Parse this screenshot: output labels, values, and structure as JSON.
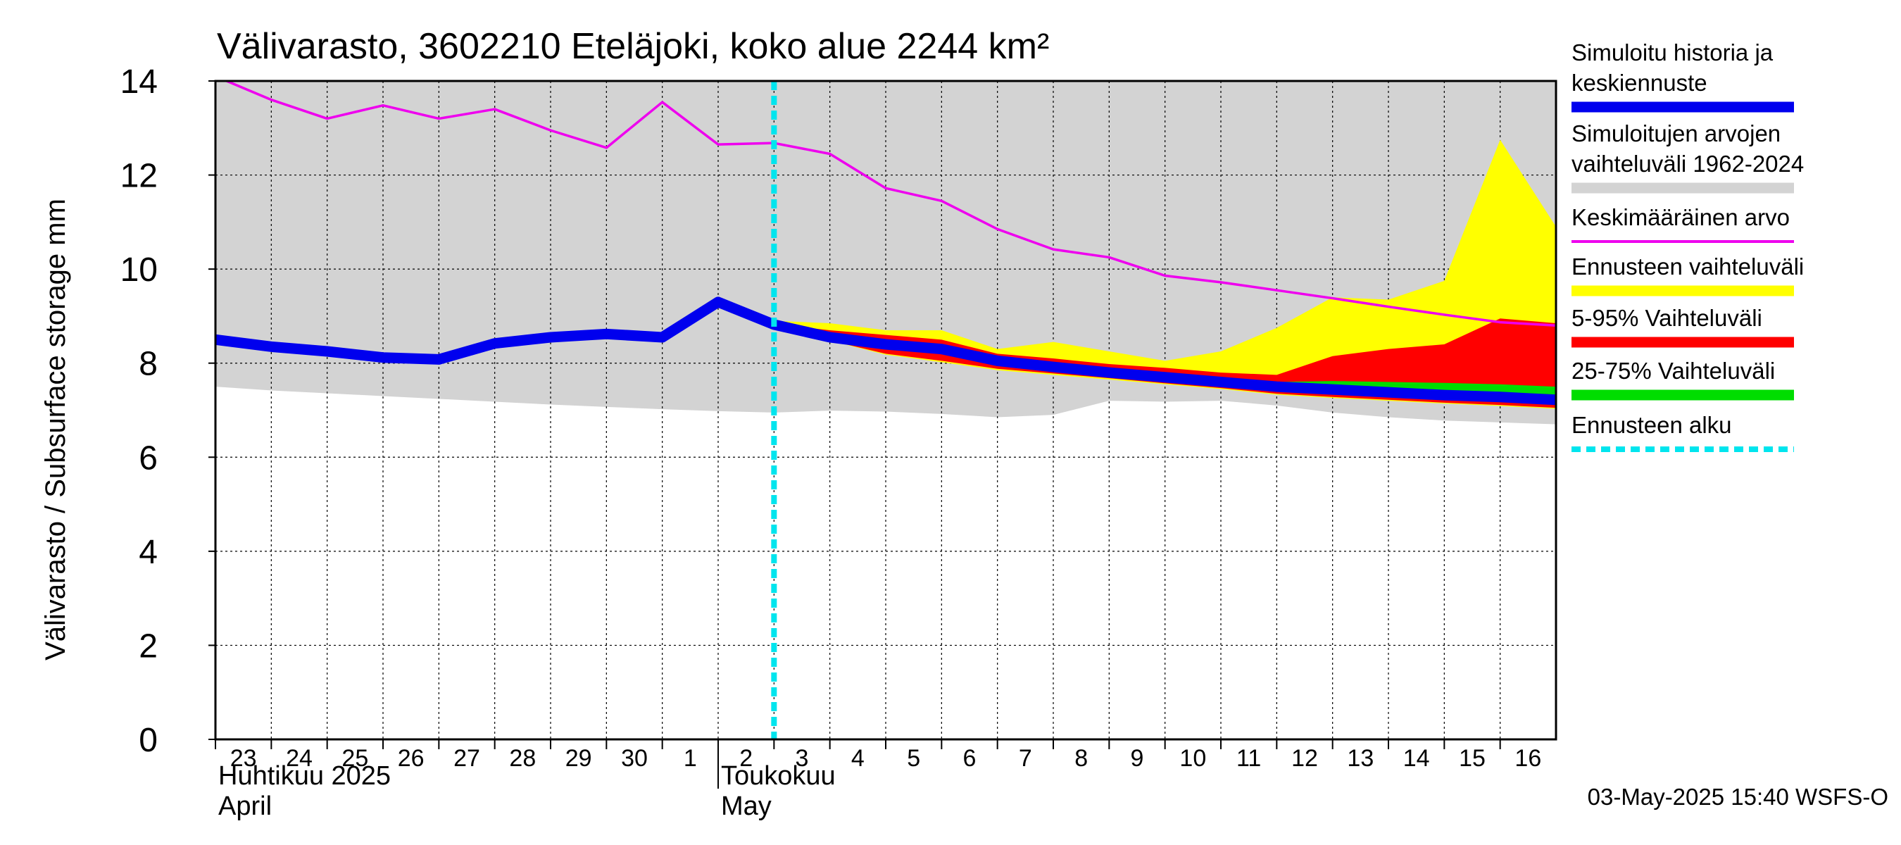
{
  "chart_data": {
    "type": "area",
    "title": "Välivarasto, 3602210 Eteläjoki, koko alue 2244 km²",
    "ylabel": "Välivarasto / Subsurface storage  mm",
    "ylim": [
      0,
      14
    ],
    "yticks": [
      0,
      2,
      4,
      6,
      8,
      10,
      12,
      14
    ],
    "x_start": "2025-04-23",
    "x_end": "2025-05-17",
    "forecast_start": "2025-05-03",
    "grid": true,
    "legend_position": "right",
    "xtick_labels": [
      "23",
      "24",
      "25",
      "26",
      "27",
      "28",
      "29",
      "30",
      "1",
      "2",
      "3",
      "4",
      "5",
      "6",
      "7",
      "8",
      "9",
      "10",
      "11",
      "12",
      "13",
      "14",
      "15",
      "16"
    ],
    "month_labels": [
      {
        "line1": "Huhtikuu  2025",
        "line2": "April",
        "at": "2025-04-23"
      },
      {
        "line1": "Toukokuu",
        "line2": "May",
        "at": "2025-05-02"
      }
    ],
    "footer": "03-May-2025 15:40 WSFS-O",
    "colors": {
      "history": "#0000ee",
      "range": "#d3d3d3",
      "mean": "#ee00ee",
      "forecast_range": "#ffff00",
      "p5_95": "#ff0000",
      "p25_75": "#00dd00",
      "forecast_start": "#00e5ee"
    },
    "legend": [
      {
        "lines": [
          "Simuloitu historia ja",
          "keskiennuste"
        ],
        "color": "#0000ee",
        "style": "thick"
      },
      {
        "lines": [
          "Simuloitujen arvojen",
          "vaihteluväli 1962-2024"
        ],
        "color": "#d3d3d3",
        "style": "thick"
      },
      {
        "lines": [
          "Keskimääräinen arvo"
        ],
        "color": "#ee00ee",
        "style": "thin"
      },
      {
        "lines": [
          "Ennusteen vaihteluväli"
        ],
        "color": "#ffff00",
        "style": "thick"
      },
      {
        "lines": [
          "5-95% Vaihteluväli"
        ],
        "color": "#ff0000",
        "style": "thick"
      },
      {
        "lines": [
          "25-75% Vaihteluväli"
        ],
        "color": "#00dd00",
        "style": "thick"
      },
      {
        "lines": [
          "Ennusteen alku"
        ],
        "color": "#00e5ee",
        "style": "dashed"
      }
    ],
    "series": [
      {
        "name": "Simuloitujen arvojen vaihteluväli 1962-2024",
        "kind": "band",
        "x": [
          "2025-04-23",
          "2025-04-24",
          "2025-04-25",
          "2025-04-26",
          "2025-04-27",
          "2025-04-28",
          "2025-04-29",
          "2025-04-30",
          "2025-05-01",
          "2025-05-02",
          "2025-05-03",
          "2025-05-04",
          "2025-05-05",
          "2025-05-06",
          "2025-05-07",
          "2025-05-08",
          "2025-05-09",
          "2025-05-10",
          "2025-05-11",
          "2025-05-12",
          "2025-05-13",
          "2025-05-14",
          "2025-05-15",
          "2025-05-16",
          "2025-05-17"
        ],
        "low": [
          7.5,
          7.42,
          7.36,
          7.3,
          7.24,
          7.18,
          7.12,
          7.07,
          7.02,
          6.98,
          6.95,
          6.99,
          6.97,
          6.92,
          6.85,
          6.9,
          7.2,
          7.18,
          7.2,
          7.1,
          6.95,
          6.85,
          6.78,
          6.74,
          6.7
        ],
        "high": [
          14,
          14,
          14,
          14,
          14,
          14,
          14,
          14,
          14,
          14,
          14,
          14,
          14,
          14,
          14,
          14,
          14,
          14,
          14,
          14,
          14,
          14,
          14,
          14,
          14
        ]
      },
      {
        "name": "Keskimääräinen arvo",
        "kind": "line",
        "x": [
          "2025-04-23",
          "2025-04-24",
          "2025-04-25",
          "2025-04-26",
          "2025-04-27",
          "2025-04-28",
          "2025-04-29",
          "2025-04-30",
          "2025-05-01",
          "2025-05-02",
          "2025-05-03",
          "2025-05-04",
          "2025-05-05",
          "2025-05-06",
          "2025-05-07",
          "2025-05-08",
          "2025-05-09",
          "2025-05-10",
          "2025-05-11",
          "2025-05-12",
          "2025-05-13",
          "2025-05-14",
          "2025-05-15",
          "2025-05-16",
          "2025-05-17"
        ],
        "values": [
          14.1,
          13.6,
          13.2,
          13.48,
          13.2,
          13.4,
          12.95,
          12.58,
          13.55,
          12.65,
          12.68,
          12.45,
          11.72,
          11.45,
          10.85,
          10.42,
          10.25,
          9.86,
          9.72,
          9.55,
          9.38,
          9.2,
          9.03,
          8.87,
          8.8
        ]
      },
      {
        "name": "Ennusteen vaihteluväli",
        "kind": "band",
        "x": [
          "2025-05-03",
          "2025-05-04",
          "2025-05-05",
          "2025-05-06",
          "2025-05-07",
          "2025-05-08",
          "2025-05-09",
          "2025-05-10",
          "2025-05-11",
          "2025-05-12",
          "2025-05-13",
          "2025-05-14",
          "2025-05-15",
          "2025-05-16",
          "2025-05-17"
        ],
        "low": [
          8.78,
          8.48,
          8.18,
          8.02,
          7.85,
          7.75,
          7.65,
          7.55,
          7.45,
          7.33,
          7.26,
          7.2,
          7.14,
          7.09,
          7.03
        ],
        "high": [
          8.9,
          8.85,
          8.7,
          8.7,
          8.3,
          8.45,
          8.25,
          8.05,
          8.25,
          8.75,
          9.4,
          9.35,
          9.75,
          12.75,
          10.9
        ]
      },
      {
        "name": "5-95% Vaihteluväli",
        "kind": "band",
        "x": [
          "2025-05-03",
          "2025-05-04",
          "2025-05-05",
          "2025-05-06",
          "2025-05-07",
          "2025-05-08",
          "2025-05-09",
          "2025-05-10",
          "2025-05-11",
          "2025-05-12",
          "2025-05-13",
          "2025-05-14",
          "2025-05-15",
          "2025-05-16",
          "2025-05-17"
        ],
        "low": [
          8.78,
          8.48,
          8.2,
          8.05,
          7.88,
          7.78,
          7.68,
          7.57,
          7.47,
          7.35,
          7.28,
          7.22,
          7.16,
          7.11,
          7.05
        ],
        "high": [
          8.83,
          8.7,
          8.6,
          8.5,
          8.2,
          8.1,
          7.98,
          7.9,
          7.8,
          7.75,
          8.15,
          8.3,
          8.4,
          8.95,
          8.85
        ]
      },
      {
        "name": "25-75% Vaihteluväli",
        "kind": "band",
        "x": [
          "2025-05-03",
          "2025-05-04",
          "2025-05-05",
          "2025-05-06",
          "2025-05-07",
          "2025-05-08",
          "2025-05-09",
          "2025-05-10",
          "2025-05-11",
          "2025-05-12",
          "2025-05-13",
          "2025-05-14",
          "2025-05-15",
          "2025-05-16",
          "2025-05-17"
        ],
        "low": [
          8.8,
          8.52,
          8.3,
          8.22,
          7.97,
          7.85,
          7.72,
          7.62,
          7.52,
          7.42,
          7.36,
          7.31,
          7.26,
          7.22,
          7.18
        ],
        "high": [
          8.81,
          8.6,
          8.45,
          8.38,
          8.1,
          8.0,
          7.9,
          7.8,
          7.7,
          7.6,
          7.62,
          7.6,
          7.58,
          7.55,
          7.5
        ]
      },
      {
        "name": "Simuloitu historia ja keskiennuste",
        "kind": "line",
        "x": [
          "2025-04-23",
          "2025-04-24",
          "2025-04-25",
          "2025-04-26",
          "2025-04-27",
          "2025-04-28",
          "2025-04-29",
          "2025-04-30",
          "2025-05-01",
          "2025-05-02",
          "2025-05-03",
          "2025-05-04",
          "2025-05-05",
          "2025-05-06",
          "2025-05-07",
          "2025-05-08",
          "2025-05-09",
          "2025-05-10",
          "2025-05-11",
          "2025-05-12",
          "2025-05-13",
          "2025-05-14",
          "2025-05-15",
          "2025-05-16",
          "2025-05-17"
        ],
        "values": [
          8.5,
          8.35,
          8.25,
          8.12,
          8.08,
          8.42,
          8.55,
          8.62,
          8.55,
          9.3,
          8.82,
          8.55,
          8.4,
          8.3,
          8.05,
          7.92,
          7.8,
          7.7,
          7.6,
          7.5,
          7.44,
          7.38,
          7.32,
          7.28,
          7.22
        ]
      }
    ]
  }
}
